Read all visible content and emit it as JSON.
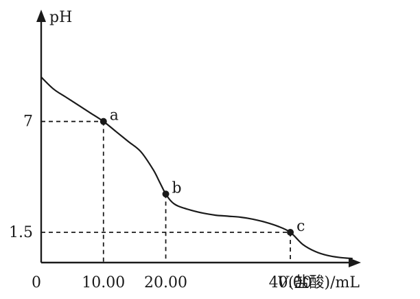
{
  "chart_data": {
    "type": "line",
    "title": "",
    "ylabel": "pH",
    "xlabel": {
      "symbol": "V",
      "substance": "(盐酸)",
      "unit": "/mL"
    },
    "origin_label": "0",
    "xlim": [
      0,
      52
    ],
    "ylim": [
      0,
      12
    ],
    "x_ticks": [
      {
        "value": 10,
        "label": "10.00"
      },
      {
        "value": 20,
        "label": "20.00"
      },
      {
        "value": 40,
        "label": "40.00"
      }
    ],
    "y_ticks": [
      {
        "value": 7,
        "label": "7"
      },
      {
        "value": 1.5,
        "label": "1.5"
      }
    ],
    "series": [
      {
        "x": [
          0,
          2,
          4,
          6,
          8,
          10,
          12,
          14,
          16,
          18,
          19,
          20,
          21,
          22,
          24,
          26,
          28,
          30,
          32,
          34,
          36,
          38,
          40,
          42,
          44,
          46,
          48,
          50
        ],
        "y": [
          9.2,
          8.6,
          8.2,
          7.8,
          7.4,
          7.0,
          6.5,
          6.0,
          5.5,
          4.6,
          4.0,
          3.4,
          3.0,
          2.8,
          2.6,
          2.45,
          2.35,
          2.3,
          2.25,
          2.15,
          2.0,
          1.8,
          1.5,
          0.9,
          0.55,
          0.35,
          0.25,
          0.2
        ]
      }
    ],
    "points": [
      {
        "name": "a",
        "x": 10,
        "y": 7.0
      },
      {
        "name": "b",
        "x": 20,
        "y": 3.4
      },
      {
        "name": "c",
        "x": 40,
        "y": 1.5
      }
    ],
    "grid": false,
    "legend": "none"
  }
}
